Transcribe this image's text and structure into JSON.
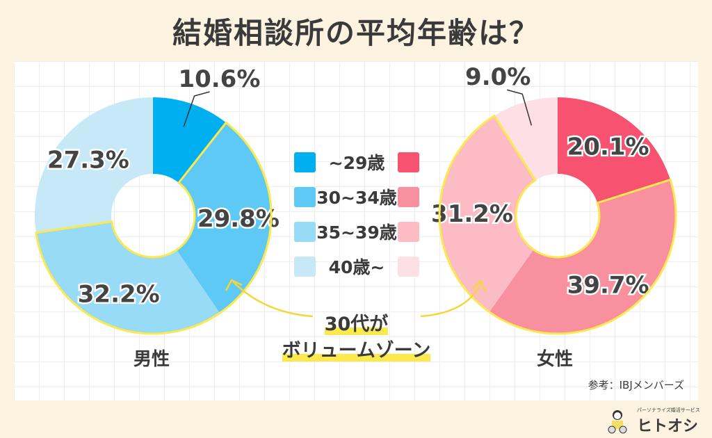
{
  "title": "結婚相談所の平均年齢は？",
  "chart_data": [
    {
      "type": "pie",
      "name": "男性",
      "categories": [
        "~29歳",
        "30~34歳",
        "35~39歳",
        "40歳~"
      ],
      "values": [
        10.6,
        29.8,
        32.2,
        27.3
      ],
      "labels": [
        "10.6%",
        "29.8%",
        "32.2%",
        "27.3%"
      ],
      "colors": [
        "#00aff0",
        "#5ec9f5",
        "#97dbf7",
        "#c7e9f7"
      ],
      "highlighted": [
        "30~34歳",
        "35~39歳"
      ]
    },
    {
      "type": "pie",
      "name": "女性",
      "categories": [
        "~29歳",
        "30~34歳",
        "35~39歳",
        "40歳~"
      ],
      "values": [
        20.1,
        39.7,
        31.2,
        9.0
      ],
      "labels": [
        "20.1%",
        "39.7%",
        "31.2%",
        "9.0%"
      ],
      "colors": [
        "#f7526f",
        "#f8909f",
        "#fbbcc6",
        "#fde0e5"
      ],
      "highlighted": [
        "30~34歳",
        "35~39歳"
      ]
    }
  ],
  "legend": [
    "~29歳",
    "30~34歳",
    "35~39歳",
    "40歳~"
  ],
  "callout": [
    "30代が",
    "ボリュームゾーン"
  ],
  "source": "参考：IBJメンバーズ",
  "logo": {
    "tagline": "パーソナライズ婚活サービス",
    "name": "ヒトオシ"
  },
  "highlight_color": "#fbe94f"
}
